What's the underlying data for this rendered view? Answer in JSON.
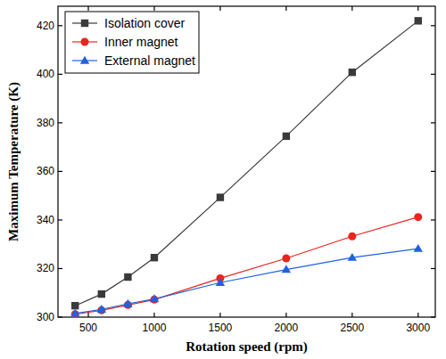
{
  "chart_data": {
    "type": "line",
    "x_label": "Rotation speed (rpm)",
    "y_label": "Maximum Temperature (K)",
    "x": [
      400,
      600,
      800,
      1000,
      1500,
      2000,
      2500,
      3000
    ],
    "series": [
      {
        "name": "Isolation cover",
        "color": "#3a3a3a",
        "marker": "square",
        "line_style": "solid",
        "values": [
          304.7,
          309.5,
          316.5,
          324.5,
          349.3,
          374.5,
          400.8,
          422.0
        ]
      },
      {
        "name": "Inner magnet",
        "color": "#e8261d",
        "marker": "circle",
        "line_style": "solid",
        "values": [
          301.2,
          302.8,
          305.0,
          307.2,
          316.0,
          324.2,
          333.3,
          341.2
        ]
      },
      {
        "name": "External magnet",
        "color": "#1f62e0",
        "marker": "triangle",
        "line_style": "solid",
        "values": [
          301.5,
          303.2,
          305.5,
          307.5,
          314.2,
          319.6,
          324.5,
          328.2
        ]
      }
    ],
    "xlim": [
      270,
      3130
    ],
    "xticks": [
      500,
      1000,
      1500,
      2000,
      2500,
      3000
    ],
    "ylim": [
      300,
      428
    ],
    "yticks": [
      300,
      320,
      340,
      360,
      380,
      400,
      420
    ],
    "grid": false,
    "legend": "upper left"
  }
}
